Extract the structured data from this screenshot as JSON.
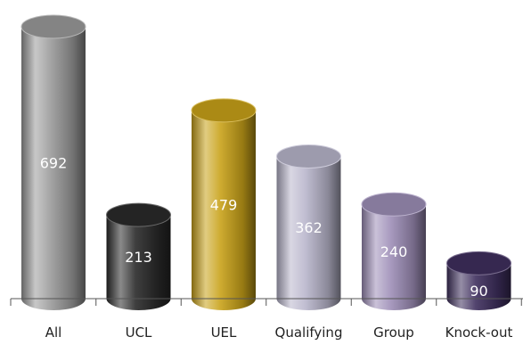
{
  "chart_data": {
    "type": "bar",
    "style": "3d-cylinder",
    "categories": [
      "All",
      "UCL",
      "UEL",
      "Qualifying",
      "Group",
      "Knock-out"
    ],
    "values": [
      692,
      213,
      479,
      362,
      240,
      90
    ],
    "value_labels": [
      "692",
      "213",
      "479",
      "362",
      "240",
      "90"
    ],
    "colors": [
      "#9b9b9b",
      "#2a2a2a",
      "#c9a219",
      "#b9b6cc",
      "#9e8fb8",
      "#3f2f5e"
    ],
    "title": "",
    "xlabel": "",
    "ylabel": "",
    "ylim": [
      0,
      692
    ],
    "grid": false,
    "legend": "none"
  }
}
